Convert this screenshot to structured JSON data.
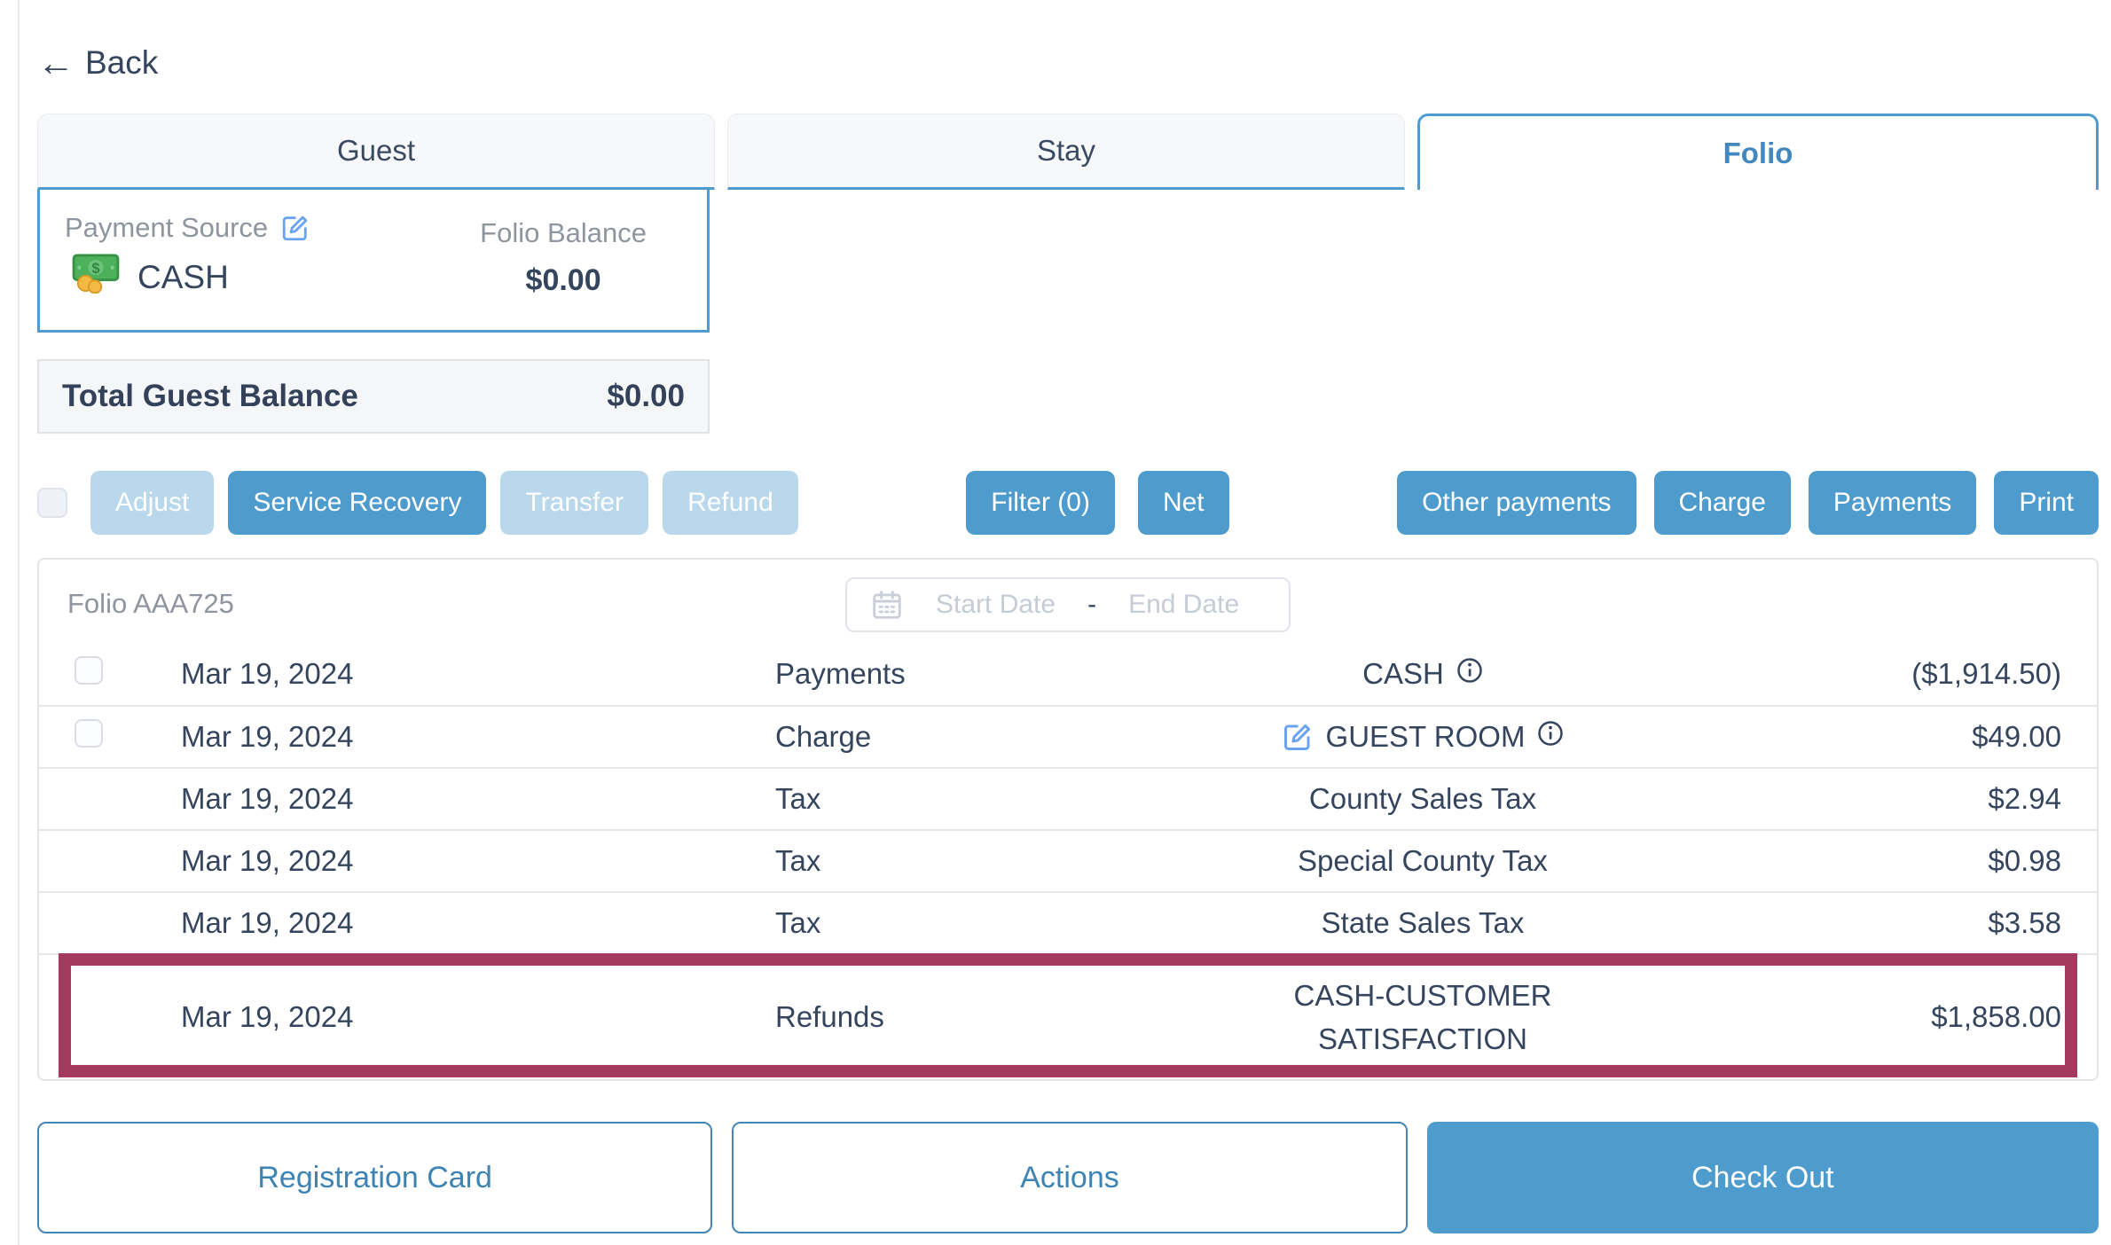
{
  "colors": {
    "accent": "#4e9bcd",
    "accent_text": "#4287bd",
    "disabled_button": "#b9d8ec",
    "text_navy": "#35455e",
    "text_gray": "#8f959e",
    "highlight_border": "#a43a5e"
  },
  "icons": {
    "back": "left-arrow ←",
    "edit": "pencil-square",
    "money": "banknote-with-coins",
    "calendar": "calendar-grid",
    "info": "circled-i"
  },
  "back_label": "Back",
  "tabs": [
    {
      "label": "Guest",
      "active": false
    },
    {
      "label": "Stay",
      "active": false
    },
    {
      "label": "Folio",
      "active": true
    }
  ],
  "payment_card": {
    "source_label": "Payment Source",
    "method": "CASH",
    "balance_label": "Folio Balance",
    "balance_value": "$0.00"
  },
  "total_balance": {
    "label": "Total Guest Balance",
    "value": "$0.00"
  },
  "toolbar": {
    "left": [
      {
        "label": "Adjust",
        "disabled": true
      },
      {
        "label": "Service Recovery",
        "disabled": false
      },
      {
        "label": "Transfer",
        "disabled": true
      },
      {
        "label": "Refund",
        "disabled": true
      }
    ],
    "center": [
      {
        "label": "Filter (0)",
        "disabled": false
      },
      {
        "label": "Net",
        "disabled": false
      }
    ],
    "right": [
      {
        "label": "Other payments",
        "disabled": false
      },
      {
        "label": "Charge",
        "disabled": false
      },
      {
        "label": "Payments",
        "disabled": false
      },
      {
        "label": "Print",
        "disabled": false
      }
    ]
  },
  "folio_table": {
    "title": "Folio AAA725",
    "date_filter": {
      "start_placeholder": "Start Date",
      "separator": "-",
      "end_placeholder": "End Date"
    },
    "rows": [
      {
        "date": "Mar 19, 2024",
        "type": "Payments",
        "description": "CASH",
        "amount": "($1,914.50)",
        "has_checkbox": true,
        "has_edit": false,
        "has_info": true,
        "highlighted": false
      },
      {
        "date": "Mar 19, 2024",
        "type": "Charge",
        "description": "GUEST ROOM",
        "amount": "$49.00",
        "has_checkbox": true,
        "has_edit": true,
        "has_info": true,
        "highlighted": false
      },
      {
        "date": "Mar 19, 2024",
        "type": "Tax",
        "description": "County Sales Tax",
        "amount": "$2.94",
        "has_checkbox": false,
        "has_edit": false,
        "has_info": false,
        "highlighted": false
      },
      {
        "date": "Mar 19, 2024",
        "type": "Tax",
        "description": "Special County Tax",
        "amount": "$0.98",
        "has_checkbox": false,
        "has_edit": false,
        "has_info": false,
        "highlighted": false
      },
      {
        "date": "Mar 19, 2024",
        "type": "Tax",
        "description": "State Sales Tax",
        "amount": "$3.58",
        "has_checkbox": false,
        "has_edit": false,
        "has_info": false,
        "highlighted": false
      },
      {
        "date": "Mar 19, 2024",
        "type": "Refunds",
        "description": "CASH-CUSTOMER SATISFACTION",
        "amount": "$1,858.00",
        "has_checkbox": false,
        "has_edit": false,
        "has_info": false,
        "highlighted": true
      }
    ]
  },
  "footer_buttons": [
    {
      "label": "Registration Card",
      "style": "outline"
    },
    {
      "label": "Actions",
      "style": "outline"
    },
    {
      "label": "Check Out",
      "style": "solid"
    }
  ]
}
